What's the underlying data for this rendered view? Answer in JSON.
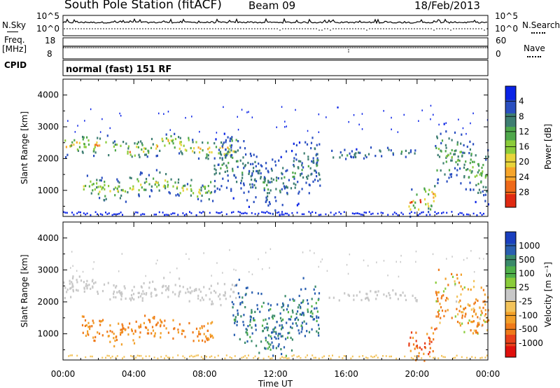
{
  "header": {
    "station": "South Pole Station (fitACF)",
    "beam": "Beam 09",
    "date": "18/Feb/2013"
  },
  "top_panels": {
    "nsky_label": "N.Sky",
    "nsearch_label": "N.Search",
    "noise_ticks": [
      "10^5",
      "10^0"
    ],
    "freq_label_1": "Freq.",
    "freq_label_2": "[MHz]",
    "freq_ticks": [
      "18",
      "8"
    ],
    "nave_label": "Nave",
    "nave_ticks": [
      "60",
      "0"
    ],
    "cpid_label": "CPID",
    "cpid_value": "normal (fast) 151 RF"
  },
  "chart_data": [
    {
      "type": "heatmap",
      "panel": "power",
      "ylabel": "Slant Range [km]",
      "xlabel": "",
      "x_ticks": [
        "00:00",
        "04:00",
        "08:00",
        "12:00",
        "16:00",
        "20:00",
        "00:00"
      ],
      "y_ticks": [
        1000,
        2000,
        3000,
        4000
      ],
      "ylim": [
        180,
        4500
      ],
      "xlim_hours": [
        0,
        24
      ],
      "colorbar": {
        "label": "Power [dB]",
        "ticks": [
          "4",
          "8",
          "12",
          "16",
          "20",
          "24",
          "28"
        ],
        "colors": [
          "#0a23e6",
          "#2a4fc0",
          "#3e7e72",
          "#4fa84b",
          "#8ccc3a",
          "#e8d43a",
          "#f7a52a",
          "#ef6a1a",
          "#e02a12"
        ]
      },
      "features": [
        {
          "hours": [
            0.0,
            9.8
          ],
          "range_km": [
            2000,
            2800
          ],
          "power_db": [
            4,
            24
          ]
        },
        {
          "hours": [
            1.0,
            8.5
          ],
          "range_km": [
            700,
            1600
          ],
          "power_db": [
            4,
            20
          ]
        },
        {
          "hours": [
            8.5,
            14.5
          ],
          "range_km": [
            400,
            2600
          ],
          "power_db": [
            4,
            12
          ]
        },
        {
          "hours": [
            15.0,
            20.0
          ],
          "range_km": [
            2000,
            2400
          ],
          "power_db": [
            4,
            12
          ]
        },
        {
          "hours": [
            19.5,
            21.0
          ],
          "range_km": [
            300,
            1400
          ],
          "power_db": [
            4,
            28
          ]
        },
        {
          "hours": [
            21.0,
            24.0
          ],
          "range_km": [
            800,
            2900
          ],
          "power_db": [
            4,
            16
          ]
        }
      ]
    },
    {
      "type": "heatmap",
      "panel": "velocity",
      "ylabel": "Slant Range [km]",
      "xlabel": "Time UT",
      "x_ticks": [
        "00:00",
        "04:00",
        "08:00",
        "12:00",
        "16:00",
        "20:00",
        "00:00"
      ],
      "y_ticks": [
        1000,
        2000,
        3000,
        4000
      ],
      "ylim": [
        180,
        4500
      ],
      "xlim_hours": [
        0,
        24
      ],
      "colorbar": {
        "label": "Velocity [m s⁻¹]",
        "ticks": [
          "1000",
          "500",
          "100",
          "25",
          "-25",
          "-100",
          "-500",
          "-1000"
        ],
        "colors": [
          "#1a3fbf",
          "#2a5fb0",
          "#3a8a6a",
          "#4fb04a",
          "#8acc3a",
          "#c8c8c8",
          "#f3c35a",
          "#f2a02a",
          "#ef7a1a",
          "#e8401a",
          "#e0100c"
        ]
      },
      "features": [
        {
          "hours": [
            0.0,
            9.8
          ],
          "range_km": [
            2000,
            2800
          ],
          "velocity_ms": [
            -25,
            25
          ]
        },
        {
          "hours": [
            1.0,
            8.5
          ],
          "range_km": [
            700,
            1600
          ],
          "velocity_ms": [
            -500,
            -100
          ]
        },
        {
          "hours": [
            9.5,
            14.5
          ],
          "range_km": [
            400,
            2600
          ],
          "velocity_ms": [
            100,
            1000
          ]
        },
        {
          "hours": [
            15.0,
            20.0
          ],
          "range_km": [
            2000,
            2400
          ],
          "velocity_ms": [
            -25,
            25
          ]
        },
        {
          "hours": [
            19.5,
            21.0
          ],
          "range_km": [
            300,
            1400
          ],
          "velocity_ms": [
            -1000,
            -100
          ]
        },
        {
          "hours": [
            21.0,
            24.0
          ],
          "range_km": [
            800,
            2900
          ],
          "velocity_ms": [
            -500,
            100
          ]
        }
      ]
    }
  ]
}
